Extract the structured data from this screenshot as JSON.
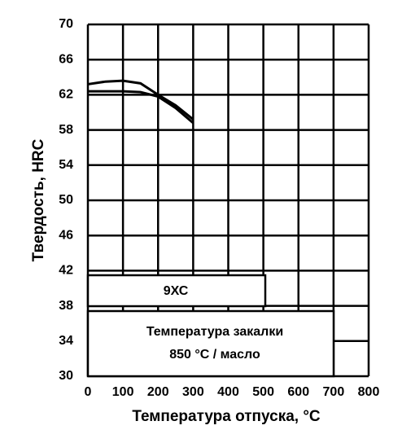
{
  "chart_data": {
    "type": "line",
    "x": [
      0,
      50,
      100,
      150,
      200,
      250,
      300
    ],
    "series": [
      {
        "color": "#000000",
        "values": [
          63.2,
          63.5,
          63.6,
          63.3,
          62,
          60.8,
          59.2
        ]
      },
      {
        "color": "#000000",
        "values": [
          62.4,
          62.4,
          62.4,
          62.3,
          61.8,
          60.5,
          58.8
        ]
      }
    ],
    "xlabel": "Температура отпуска, °C",
    "ylabel": "Твердость, HRC",
    "annotations": [
      "9ХС",
      "Температура закалки",
      "850 °C / масло"
    ],
    "xlim": [
      0,
      800
    ],
    "xticks": [
      0,
      100,
      200,
      300,
      400,
      500,
      600,
      700,
      800
    ],
    "ylim": [
      30,
      70
    ],
    "yticks": [
      30,
      34,
      38,
      42,
      46,
      50,
      54,
      58,
      62,
      66,
      70
    ],
    "grid": true
  }
}
